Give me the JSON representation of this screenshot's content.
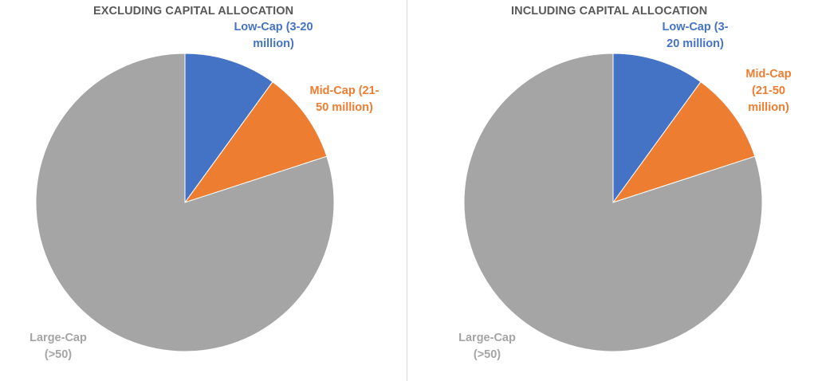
{
  "chart_data": [
    {
      "type": "pie",
      "title": "EXCLUDING CAPITAL ALLOCATION",
      "slices": [
        {
          "label": "Low-Cap (3-20 million)",
          "label_lines": [
            "Low-Cap (3-20",
            "million)"
          ],
          "value": 10,
          "color": "#4472C4"
        },
        {
          "label": "Mid-Cap (21-50 million)",
          "label_lines": [
            "Mid-Cap (21-",
            "50 million)"
          ],
          "value": 10,
          "color": "#ED7D31"
        },
        {
          "label": "Large-Cap (>50)",
          "label_lines": [
            "Large-Cap",
            "(>50)"
          ],
          "value": 80,
          "color": "#A5A5A5"
        }
      ]
    },
    {
      "type": "pie",
      "title": "INCLUDING CAPITAL ALLOCATION",
      "slices": [
        {
          "label": "Low-Cap (3-20 million)",
          "label_lines": [
            "Low-Cap (3-",
            "20 million)"
          ],
          "value": 10,
          "color": "#4472C4"
        },
        {
          "label": "Mid-Cap (21-50 million)",
          "label_lines": [
            "Mid-Cap",
            "(21-50",
            "million)"
          ],
          "value": 10,
          "color": "#ED7D31"
        },
        {
          "label": "Large-Cap (>50)",
          "label_lines": [
            "Large-Cap",
            "(>50)"
          ],
          "value": 80,
          "color": "#A5A5A5"
        }
      ]
    }
  ]
}
